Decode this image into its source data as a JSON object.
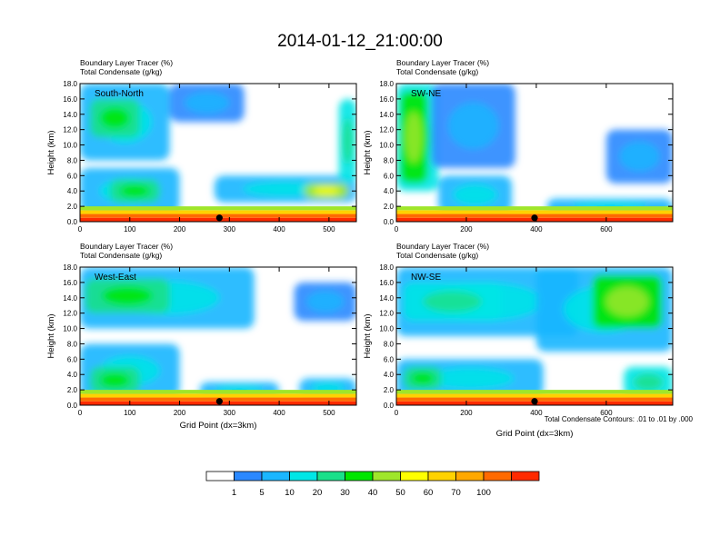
{
  "figure": {
    "title": "2014-01-12_21:00:00",
    "footnote": "Total Condensate Contours: .01 to .01 by .000"
  },
  "colorbar": {
    "colors": [
      "#ffffff",
      "#2a88ff",
      "#1ab6ff",
      "#00e6e6",
      "#19e08a",
      "#00e600",
      "#9fe62a",
      "#ffff00",
      "#ffd200",
      "#ffa800",
      "#ff6a00",
      "#ff2a00"
    ],
    "labels": [
      "1",
      "5",
      "10",
      "20",
      "30",
      "40",
      "50",
      "60",
      "70",
      "100"
    ]
  },
  "chart_data": [
    {
      "type": "heatmap",
      "title_line1": "Boundary Layer Tracer   (%)",
      "title_line2": "Total Condensate   (g/kg)",
      "section_label": "South-North",
      "xlabel": "",
      "ylabel": "Height (km)",
      "xlim": [
        0,
        555
      ],
      "ylim": [
        0,
        18
      ],
      "xticks": [
        0,
        100,
        200,
        300,
        400,
        500
      ],
      "xtick_labels": [
        "0",
        "100",
        "200",
        "300",
        "400",
        "500"
      ],
      "yticks": [
        0,
        2,
        4,
        6,
        8,
        10,
        12,
        14,
        16,
        18
      ],
      "ytick_labels": [
        "0.0",
        "2.0",
        "4.0",
        "6.0",
        "8.0",
        "10.0",
        "12.0",
        "14.0",
        "16.0",
        "18.0"
      ],
      "marker_x": 280,
      "cloud_regions": [
        {
          "x0": 0,
          "x1": 180,
          "y0": 8,
          "y1": 18,
          "level": 3
        },
        {
          "x0": 20,
          "x1": 120,
          "y0": 11,
          "y1": 16,
          "level": 5
        },
        {
          "x0": 180,
          "x1": 330,
          "y0": 13,
          "y1": 18,
          "level": 2
        },
        {
          "x0": 0,
          "x1": 200,
          "y0": 1,
          "y1": 7,
          "level": 3
        },
        {
          "x0": 60,
          "x1": 160,
          "y0": 2.5,
          "y1": 5.5,
          "level": 5
        },
        {
          "x0": 270,
          "x1": 555,
          "y0": 2.5,
          "y1": 6,
          "level": 3
        },
        {
          "x0": 450,
          "x1": 540,
          "y0": 3,
          "y1": 5,
          "level": 7
        },
        {
          "x0": 520,
          "x1": 555,
          "y0": 5,
          "y1": 16,
          "level": 4
        }
      ]
    },
    {
      "type": "heatmap",
      "title_line1": "Boundary Layer Tracer   (%)",
      "title_line2": "Total Condensate   (g/kg)",
      "section_label": "SW-NE",
      "xlabel": "",
      "ylabel": "Height (km)",
      "xlim": [
        0,
        790
      ],
      "ylim": [
        0,
        18
      ],
      "xticks": [
        0,
        200,
        400,
        600
      ],
      "xtick_labels": [
        "0",
        "200",
        "400",
        "600"
      ],
      "yticks": [
        0,
        2,
        4,
        6,
        8,
        10,
        12,
        14,
        16,
        18
      ],
      "ytick_labels": [
        "0.0",
        "2.0",
        "4.0",
        "6.0",
        "8.0",
        "10.0",
        "12.0",
        "14.0",
        "16.0",
        "18.0"
      ],
      "marker_x": 395,
      "cloud_regions": [
        {
          "x0": 0,
          "x1": 120,
          "y0": 4,
          "y1": 18,
          "level": 4
        },
        {
          "x0": 10,
          "x1": 90,
          "y0": 5,
          "y1": 17,
          "level": 6
        },
        {
          "x0": 100,
          "x1": 340,
          "y0": 7,
          "y1": 18,
          "level": 2
        },
        {
          "x0": 120,
          "x1": 330,
          "y0": 1,
          "y1": 6,
          "level": 3
        },
        {
          "x0": 430,
          "x1": 790,
          "y0": 1,
          "y1": 3,
          "level": 3
        },
        {
          "x0": 600,
          "x1": 790,
          "y0": 5,
          "y1": 12,
          "level": 2
        }
      ]
    },
    {
      "type": "heatmap",
      "title_line1": "Boundary Layer Tracer   (%)",
      "title_line2": "Total Condensate   (g/kg)",
      "section_label": "West-East",
      "xlabel": "Grid Point (dx=3km)",
      "ylabel": "Height (km)",
      "xlim": [
        0,
        555
      ],
      "ylim": [
        0,
        18
      ],
      "xticks": [
        0,
        100,
        200,
        300,
        400,
        500
      ],
      "xtick_labels": [
        "0",
        "100",
        "200",
        "300",
        "400",
        "500"
      ],
      "yticks": [
        0,
        2,
        4,
        6,
        8,
        10,
        12,
        14,
        16,
        18
      ],
      "ytick_labels": [
        "0.0",
        "2.0",
        "4.0",
        "6.0",
        "8.0",
        "10.0",
        "12.0",
        "14.0",
        "16.0",
        "18.0"
      ],
      "marker_x": 280,
      "cloud_regions": [
        {
          "x0": 0,
          "x1": 350,
          "y0": 10,
          "y1": 18,
          "level": 3
        },
        {
          "x0": 10,
          "x1": 180,
          "y0": 12,
          "y1": 16.5,
          "level": 5
        },
        {
          "x0": 430,
          "x1": 555,
          "y0": 11,
          "y1": 16,
          "level": 2
        },
        {
          "x0": 0,
          "x1": 200,
          "y0": 1,
          "y1": 8,
          "level": 3
        },
        {
          "x0": 20,
          "x1": 120,
          "y0": 1.5,
          "y1": 5,
          "level": 5
        },
        {
          "x0": 240,
          "x1": 400,
          "y0": 1,
          "y1": 3,
          "level": 3
        },
        {
          "x0": 440,
          "x1": 555,
          "y0": 1,
          "y1": 3.5,
          "level": 3
        }
      ]
    },
    {
      "type": "heatmap",
      "title_line1": "Boundary Layer Tracer   (%)",
      "title_line2": "Total Condensate   (g/kg)",
      "section_label": "NW-SE",
      "xlabel": "Grid Point (dx=3km)",
      "ylabel": "Height (km)",
      "xlim": [
        0,
        790
      ],
      "ylim": [
        0,
        18
      ],
      "xticks": [
        0,
        200,
        400,
        600
      ],
      "xtick_labels": [
        "0",
        "200",
        "400",
        "600"
      ],
      "yticks": [
        0,
        2,
        4,
        6,
        8,
        10,
        12,
        14,
        16,
        18
      ],
      "ytick_labels": [
        "0.0",
        "2.0",
        "4.0",
        "6.0",
        "8.0",
        "10.0",
        "12.0",
        "14.0",
        "16.0",
        "18.0"
      ],
      "marker_x": 395,
      "cloud_regions": [
        {
          "x0": 0,
          "x1": 520,
          "y0": 9,
          "y1": 18,
          "level": 3
        },
        {
          "x0": 20,
          "x1": 300,
          "y0": 11,
          "y1": 16,
          "level": 4
        },
        {
          "x0": 400,
          "x1": 790,
          "y0": 7,
          "y1": 18,
          "level": 3
        },
        {
          "x0": 560,
          "x1": 760,
          "y0": 10,
          "y1": 17,
          "level": 6
        },
        {
          "x0": 0,
          "x1": 420,
          "y0": 1,
          "y1": 6,
          "level": 3
        },
        {
          "x0": 20,
          "x1": 130,
          "y0": 2,
          "y1": 5,
          "level": 5
        },
        {
          "x0": 650,
          "x1": 790,
          "y0": 1,
          "y1": 5,
          "level": 4
        }
      ]
    }
  ]
}
